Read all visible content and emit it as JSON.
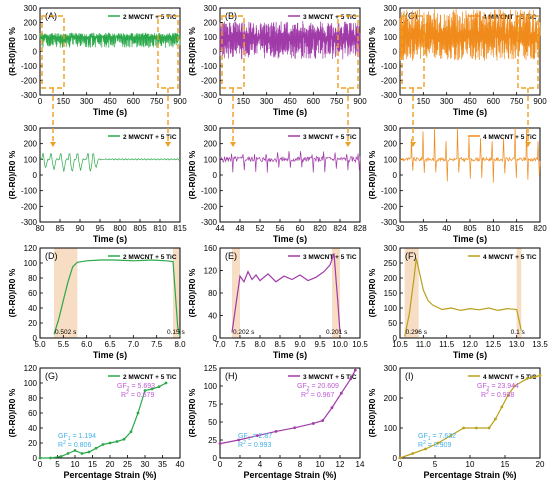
{
  "figure": {
    "description": "Twelve-panel composite of relative resistance change (R-R0)/R0 % vs time and vs percentage strain for MWCNT + TiC composites"
  },
  "chart_data": [
    {
      "type": "line",
      "panel": "(A)",
      "legend": "2 MWCNT + 5 TiC",
      "color": "#2aa84a",
      "xlabel": "Time (s)",
      "ylabel": "(R-R0)/R0 %",
      "xlim": [
        0,
        900
      ],
      "ylim": [
        -300,
        300
      ],
      "xticks": [
        "0",
        "150",
        "300",
        "450",
        "600",
        "750",
        "900"
      ],
      "yticks": [
        "-300",
        "-200",
        "-100",
        "0",
        "100",
        "200",
        "300"
      ],
      "signal": {
        "kind": "oscillation",
        "baseline": 100,
        "amp_up": 30,
        "amp_down": 75,
        "n": 520,
        "seed": 11
      }
    },
    {
      "type": "line",
      "panel": "(B)",
      "legend": "3 MWCNT + 5 TiC",
      "color": "#a03aa8",
      "xlabel": "Time (s)",
      "ylabel": "(R-R0)/R0 %",
      "xlim": [
        0,
        900
      ],
      "ylim": [
        -300,
        300
      ],
      "xticks": [
        "0",
        "150",
        "300",
        "450",
        "600",
        "750",
        "900"
      ],
      "yticks": [
        "-300",
        "-200",
        "-100",
        "0",
        "100",
        "200",
        "300"
      ],
      "signal": {
        "kind": "oscillation",
        "baseline": 95,
        "amp_up": 115,
        "amp_down": 150,
        "n": 620,
        "seed": 23
      }
    },
    {
      "type": "line",
      "panel": "(C)",
      "legend": "4 MWCNT + 5 TiC",
      "color": "#f08a1a",
      "xlabel": "Time (s)",
      "ylabel": "(R-R0)/R0 %",
      "xlim": [
        0,
        900
      ],
      "ylim": [
        -300,
        300
      ],
      "xticks": [
        "0",
        "150",
        "300",
        "450",
        "600",
        "750",
        "900"
      ],
      "yticks": [
        "-300",
        "-200",
        "-100",
        "0",
        "100",
        "200",
        "300"
      ],
      "signal": {
        "kind": "oscillation",
        "baseline": 110,
        "amp_up": 185,
        "amp_down": 175,
        "n": 620,
        "seed": 37
      }
    },
    {
      "type": "line",
      "panel": "",
      "legend": "2 MWCNT + 5 TiC",
      "color": "#2aa84a",
      "xlabel": "Time (s)",
      "ylabel": "(R-R0)/R0 %",
      "xlim": [
        80,
        815
      ],
      "ylim": [
        -300,
        300
      ],
      "xticks": [
        "80",
        "85",
        "90",
        "95",
        "800",
        "805",
        "810",
        "815"
      ],
      "yticks": [
        "-300",
        "-200",
        "-100",
        "0",
        "100",
        "200",
        "300"
      ],
      "signal": {
        "kind": "zoom_green",
        "baseline": 100,
        "dips": [
          0.04,
          0.1,
          0.17,
          0.23,
          0.29,
          0.36,
          0.4
        ],
        "dip_depths": [
          60,
          70,
          80,
          90,
          75,
          85,
          60
        ]
      }
    },
    {
      "type": "line",
      "panel": "",
      "legend": "3 MWCNT + 5 TiC",
      "color": "#a03aa8",
      "xlabel": "Time (s)",
      "ylabel": "(R-R0)/R0 %",
      "xlim": [
        44,
        830
      ],
      "ylim": [
        -300,
        300
      ],
      "xticks": [
        "44",
        "48",
        "52",
        "56",
        "60",
        "820",
        "824",
        "828"
      ],
      "yticks": [
        "-300",
        "-200",
        "-100",
        "0",
        "100",
        "200",
        "300"
      ],
      "signal": {
        "kind": "spikes",
        "baseline": 100,
        "noise": 18,
        "spike_up": 60,
        "spike_down": 95,
        "count": 12,
        "seed": 5
      }
    },
    {
      "type": "line",
      "panel": "",
      "legend": "4 MWCNT + 5 TiC",
      "color": "#f08a1a",
      "xlabel": "Time (s)",
      "ylabel": "(R-R0)/R0 %",
      "xlim": [
        30,
        820
      ],
      "ylim": [
        -300,
        300
      ],
      "xticks": [
        "30",
        "35",
        "40",
        "805",
        "810",
        "815",
        "820"
      ],
      "yticks": [
        "-300",
        "-200",
        "-100",
        "0",
        "100",
        "200",
        "300"
      ],
      "signal": {
        "kind": "spikes",
        "baseline": 100,
        "noise": 12,
        "spike_up": 230,
        "spike_down": 150,
        "count": 12,
        "seed": 9
      }
    },
    {
      "type": "line",
      "panel": "(D)",
      "legend": "2 MWCNT + 5 TiC",
      "color": "#2aa84a",
      "xlabel": "Time (s)",
      "ylabel": "(R-R0)/R0 %",
      "xlim": [
        5.0,
        8.0
      ],
      "ylim": [
        0,
        120
      ],
      "xticks": [
        "5.0",
        "5.5",
        "6.0",
        "6.5",
        "7.0",
        "7.5",
        "8.0"
      ],
      "yticks": [
        "0",
        "20",
        "40",
        "60",
        "80",
        "100",
        "120"
      ],
      "shade": [
        [
          5.3,
          5.8
        ],
        [
          7.85,
          8.0
        ]
      ],
      "annotations": [
        "0.502 s",
        "0.15 s"
      ],
      "x": [
        5.3,
        5.4,
        5.5,
        5.6,
        5.7,
        5.8,
        6.0,
        6.3,
        6.6,
        7.0,
        7.4,
        7.7,
        7.85,
        7.9,
        7.95,
        8.0
      ],
      "y": [
        5,
        25,
        50,
        75,
        95,
        101,
        103,
        104,
        104,
        103,
        104,
        103,
        102,
        60,
        15,
        2
      ]
    },
    {
      "type": "line",
      "panel": "(E)",
      "legend": "3 MWCNT + 5 TiC",
      "color": "#a03aa8",
      "xlabel": "Time (s)",
      "ylabel": "(R-R0)/R0 %",
      "xlim": [
        7.0,
        10.5
      ],
      "ylim": [
        0,
        160
      ],
      "xticks": [
        "7.0",
        "7.5",
        "8.0",
        "8.5",
        "9.0",
        "9.5",
        "10.0",
        "10.5"
      ],
      "yticks": [
        "0",
        "40",
        "80",
        "120",
        "160"
      ],
      "shade": [
        [
          7.3,
          7.5
        ],
        [
          9.8,
          10.0
        ]
      ],
      "annotations": [
        "0.202 s",
        "0.201 s"
      ],
      "x": [
        7.3,
        7.4,
        7.5,
        7.6,
        7.7,
        7.8,
        7.9,
        8.0,
        8.2,
        8.4,
        8.6,
        8.8,
        9.0,
        9.2,
        9.4,
        9.6,
        9.75,
        9.85,
        9.95,
        10.0
      ],
      "y": [
        10,
        60,
        110,
        100,
        118,
        104,
        112,
        102,
        114,
        100,
        110,
        104,
        112,
        102,
        108,
        118,
        130,
        150,
        60,
        10
      ]
    },
    {
      "type": "line",
      "panel": "(F)",
      "legend": "4 MWCNT + 5 TiC",
      "color": "#b8a01a",
      "xlabel": "Time (s)",
      "ylabel": "(R-R0)/R0 %",
      "xlim": [
        10.5,
        13.5
      ],
      "ylim": [
        0,
        300
      ],
      "xticks": [
        "10.5",
        "11.0",
        "11.5",
        "12.0",
        "12.5",
        "13.0",
        "13.5"
      ],
      "yticks": [
        "0",
        "50",
        "100",
        "150",
        "200",
        "250",
        "300"
      ],
      "shade": [
        [
          10.6,
          10.9
        ],
        [
          13.0,
          13.1
        ]
      ],
      "annotations": [
        "0.296 s",
        "0.1 s"
      ],
      "x": [
        10.6,
        10.7,
        10.8,
        10.85,
        10.9,
        11.0,
        11.1,
        11.2,
        11.4,
        11.6,
        11.8,
        12.0,
        12.2,
        12.4,
        12.6,
        12.8,
        13.0,
        13.05,
        13.1
      ],
      "y": [
        5,
        80,
        200,
        265,
        230,
        160,
        125,
        110,
        95,
        100,
        92,
        98,
        94,
        100,
        92,
        98,
        95,
        60,
        25
      ]
    },
    {
      "type": "line",
      "panel": "(G)",
      "legend": "2 MWCNT + 5 TiC",
      "color": "#2aa84a",
      "xlabel": "Percentage Strain (%)",
      "ylabel": "(R-R0)/R0 %",
      "xlim": [
        0,
        40
      ],
      "ylim": [
        0,
        120
      ],
      "xticks": [
        "0",
        "5",
        "10",
        "15",
        "20",
        "25",
        "30",
        "35",
        "40"
      ],
      "yticks": [
        "0",
        "20",
        "40",
        "60",
        "80",
        "100",
        "120"
      ],
      "x": [
        0,
        3,
        6,
        8,
        10,
        12,
        14,
        16,
        18,
        20,
        22,
        24,
        26,
        28,
        30,
        32,
        34,
        36
      ],
      "y": [
        0,
        0,
        2,
        6,
        10,
        6,
        8,
        13,
        18,
        20,
        22,
        25,
        35,
        60,
        90,
        92,
        95,
        100
      ],
      "fits": [
        {
          "label": "GF",
          "sub": "1",
          "val": "= 1.194",
          "r2": "= 0.806",
          "color": "#45b0e8"
        },
        {
          "label": "GF",
          "sub": "2",
          "val": "= 5.693",
          "r2": "= 0.679",
          "color": "#c05ad8"
        }
      ]
    },
    {
      "type": "line",
      "panel": "(H)",
      "legend": "3 MWCNT + 5 TiC",
      "color": "#a03aa8",
      "xlabel": "Percentage Strain (%)",
      "ylabel": "(R-R0)/R0 %",
      "xlim": [
        0,
        15
      ],
      "ylim": [
        0,
        125
      ],
      "xticks": [
        "0",
        "2",
        "4",
        "6",
        "8",
        "10",
        "12",
        "14"
      ],
      "yticks": [
        "0",
        "25",
        "50",
        "75",
        "100",
        "125"
      ],
      "x": [
        0,
        2,
        4,
        6,
        8,
        10,
        11,
        12,
        13,
        14,
        14.5
      ],
      "y": [
        20,
        25,
        31,
        37,
        42,
        48,
        52,
        70,
        90,
        110,
        122
      ],
      "fits": [
        {
          "label": "GF",
          "sub": "1",
          "val": "= 2.87",
          "r2": "= 0.993",
          "color": "#45b0e8"
        },
        {
          "label": "GF",
          "sub": "2",
          "val": "= 20.609",
          "r2": "= 0.967",
          "color": "#c05ad8"
        }
      ]
    },
    {
      "type": "line",
      "panel": "(I)",
      "legend": "4 MWCNT + 5 TiC",
      "color": "#b8a01a",
      "xlabel": "Percentage Strain (%)",
      "ylabel": "(R-R0)/R0 %",
      "xlim": [
        0,
        22
      ],
      "ylim": [
        0,
        300
      ],
      "xticks": [
        "0",
        "5",
        "10",
        "15",
        "20"
      ],
      "yticks": [
        "0",
        "100",
        "200",
        "300"
      ],
      "x": [
        0,
        2,
        4,
        6,
        8,
        10,
        12,
        14,
        15,
        16,
        17,
        18,
        20,
        21,
        22
      ],
      "y": [
        0,
        15,
        30,
        50,
        75,
        100,
        100,
        100,
        130,
        170,
        210,
        240,
        265,
        270,
        275
      ],
      "fits": [
        {
          "label": "GF",
          "sub": "1",
          "val": "= 7.632",
          "r2": "= 0.909",
          "color": "#45b0e8"
        },
        {
          "label": "GF",
          "sub": "2",
          "val": "= 23.944",
          "r2": "= 0.938",
          "color": "#c05ad8"
        }
      ]
    }
  ]
}
